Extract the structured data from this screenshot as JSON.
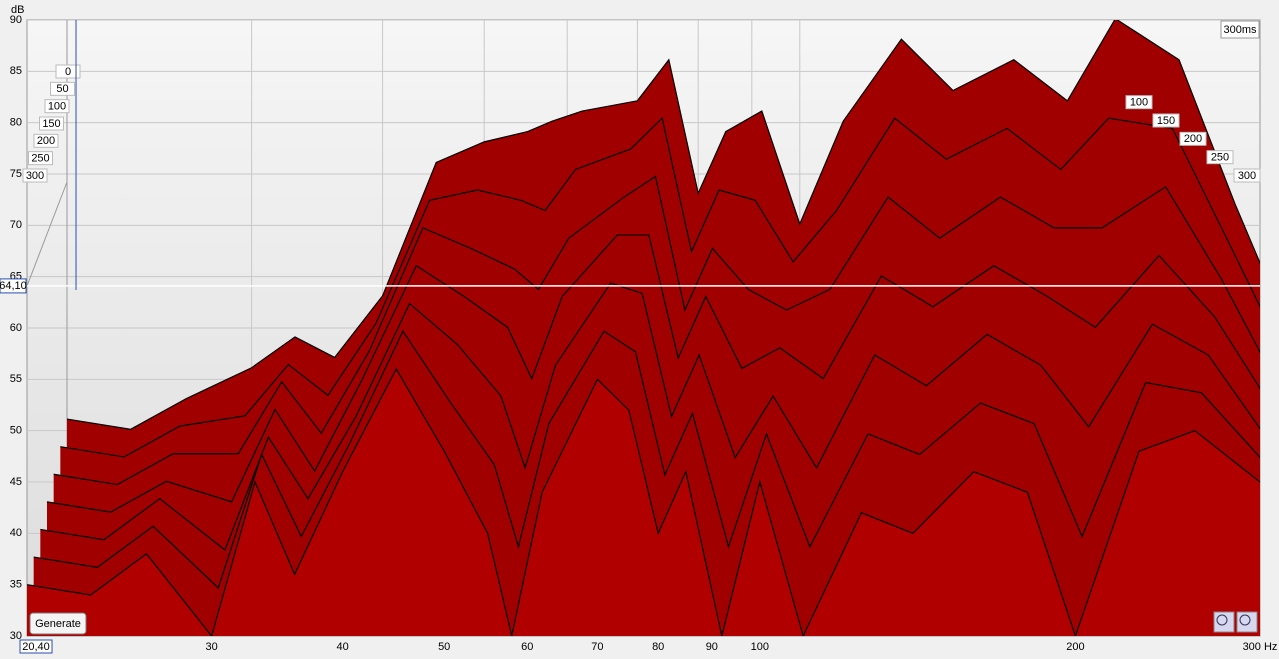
{
  "chart_data": {
    "type": "waterfall",
    "y_label": "dB",
    "xlim": [
      20,
      300
    ],
    "log_x": true,
    "xticks": [
      30,
      40,
      50,
      60,
      70,
      80,
      90,
      100,
      200,
      {
        "value": 300,
        "label": "300 Hz"
      }
    ],
    "ylim": [
      30,
      90
    ],
    "yticks": [
      30,
      35,
      40,
      45,
      50,
      55,
      60,
      65,
      70,
      75,
      80,
      85,
      90
    ],
    "zlim": [
      0,
      300
    ],
    "zticks": [
      0,
      50,
      100,
      150,
      200,
      250,
      300
    ],
    "zticks_right": [
      100,
      150,
      200,
      250,
      300
    ],
    "z_cursor_label": "300ms",
    "x_cursor": {
      "value": 20.4,
      "label": "20,40"
    },
    "y_cursor": {
      "value": 64.1,
      "label": "64,10"
    },
    "button": "Generate",
    "color": "#a00000",
    "front_color": "#b00000",
    "grid": true,
    "x": [
      20,
      23,
      26,
      30,
      33,
      36,
      40,
      45,
      50,
      55,
      58,
      62,
      70,
      75,
      80,
      85,
      92,
      100,
      110,
      125,
      140,
      160,
      180,
      200,
      230,
      260,
      300
    ],
    "series": [
      {
        "z": 0,
        "values": [
          41,
          40,
          43,
          46,
          49,
          47,
          53,
          66,
          68,
          69,
          70,
          71,
          72,
          76,
          63,
          69,
          71,
          60,
          70,
          78,
          73,
          76,
          72,
          80,
          76,
          62,
          47
        ]
      },
      {
        "z": 50,
        "values": [
          40,
          39,
          42,
          43,
          48,
          45,
          52,
          64,
          65,
          64,
          63,
          67,
          69,
          72,
          59,
          65,
          64,
          58,
          63,
          72,
          68,
          71,
          67,
          72,
          71,
          60,
          47
        ]
      },
      {
        "z": 100,
        "values": [
          39,
          38,
          41,
          41,
          48,
          43,
          51,
          63,
          61,
          59,
          57,
          62,
          66,
          68,
          55,
          61,
          57,
          55,
          57,
          66,
          62,
          66,
          63,
          63,
          67,
          58,
          46
        ]
      },
      {
        "z": 150,
        "values": [
          38,
          37,
          40,
          38,
          47,
          41,
          50,
          61,
          58,
          55,
          50,
          58,
          64,
          64,
          52,
          58,
          51,
          53,
          50,
          60,
          57,
          61,
          58,
          55,
          62,
          56,
          46
        ]
      },
      {
        "z": 200,
        "values": [
          37,
          36,
          40,
          35,
          46,
          40,
          48,
          59,
          55,
          50,
          43,
          53,
          61,
          60,
          48,
          54,
          44,
          50,
          43,
          54,
          51,
          56,
          53,
          47,
          57,
          54,
          45
        ]
      },
      {
        "z": 250,
        "values": [
          36,
          35,
          39,
          33,
          46,
          38,
          47,
          58,
          51,
          45,
          37,
          49,
          58,
          56,
          44,
          50,
          37,
          48,
          37,
          48,
          46,
          51,
          49,
          38,
          53,
          52,
          45
        ]
      },
      {
        "z": 300,
        "values": [
          35,
          34,
          38,
          30,
          45,
          36,
          46,
          56,
          48,
          40,
          30,
          44,
          55,
          52,
          40,
          46,
          30,
          45,
          30,
          42,
          40,
          46,
          44,
          30,
          48,
          50,
          45
        ]
      }
    ]
  }
}
